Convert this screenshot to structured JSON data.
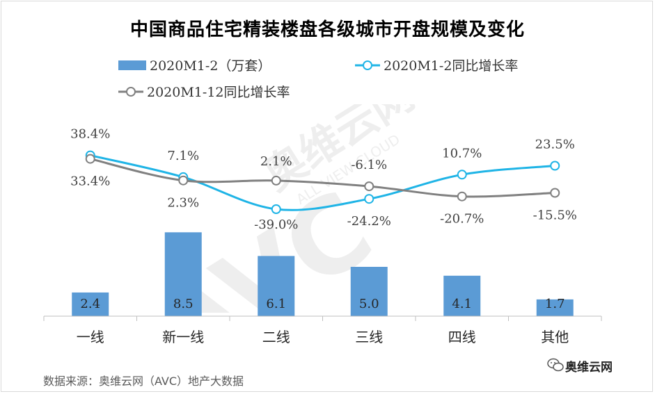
{
  "chart_data": {
    "type": "bar+line",
    "title": "中国商品住宅精装楼盘各级城市开盘规模及变化",
    "categories": [
      "一线",
      "新一线",
      "二线",
      "三线",
      "四线",
      "其他"
    ],
    "series": [
      {
        "name": "2020M1-2（万套）",
        "kind": "bar",
        "color": "#5b9bd5",
        "values": [
          2.4,
          8.5,
          6.1,
          5.0,
          4.1,
          1.7
        ],
        "labels": [
          "2.4",
          "8.5",
          "6.1",
          "5.0",
          "4.1",
          "1.7"
        ]
      },
      {
        "name": "2020M1-2同比增长率",
        "kind": "line",
        "color": "#1fb4e6",
        "values": [
          38.4,
          7.1,
          -39.0,
          -24.2,
          10.7,
          23.5
        ],
        "labels": [
          "38.4%",
          "7.1%",
          "-39.0%",
          "-24.2%",
          "10.7%",
          "23.5%"
        ]
      },
      {
        "name": "2020M1-12同比增长率",
        "kind": "line",
        "color": "#808080",
        "values": [
          33.4,
          2.3,
          2.1,
          -6.1,
          -20.7,
          -15.5
        ],
        "labels": [
          "33.4%",
          "2.3%",
          "2.1%",
          "-6.1%",
          "-20.7%",
          "-15.5%"
        ]
      }
    ],
    "bar_axis_range": [
      0,
      10
    ],
    "line_axis_range": [
      -60,
      60
    ],
    "legend_position": "top"
  },
  "watermark": {
    "text": "AVC",
    "brand": "奥维云网",
    "sub": "ALL VIEW CLOUD"
  },
  "footer": {
    "source": "数据来源：奥维云网（AVC）地产大数据",
    "brand_name": "奥维云网",
    "icon": "wechat-icon"
  }
}
